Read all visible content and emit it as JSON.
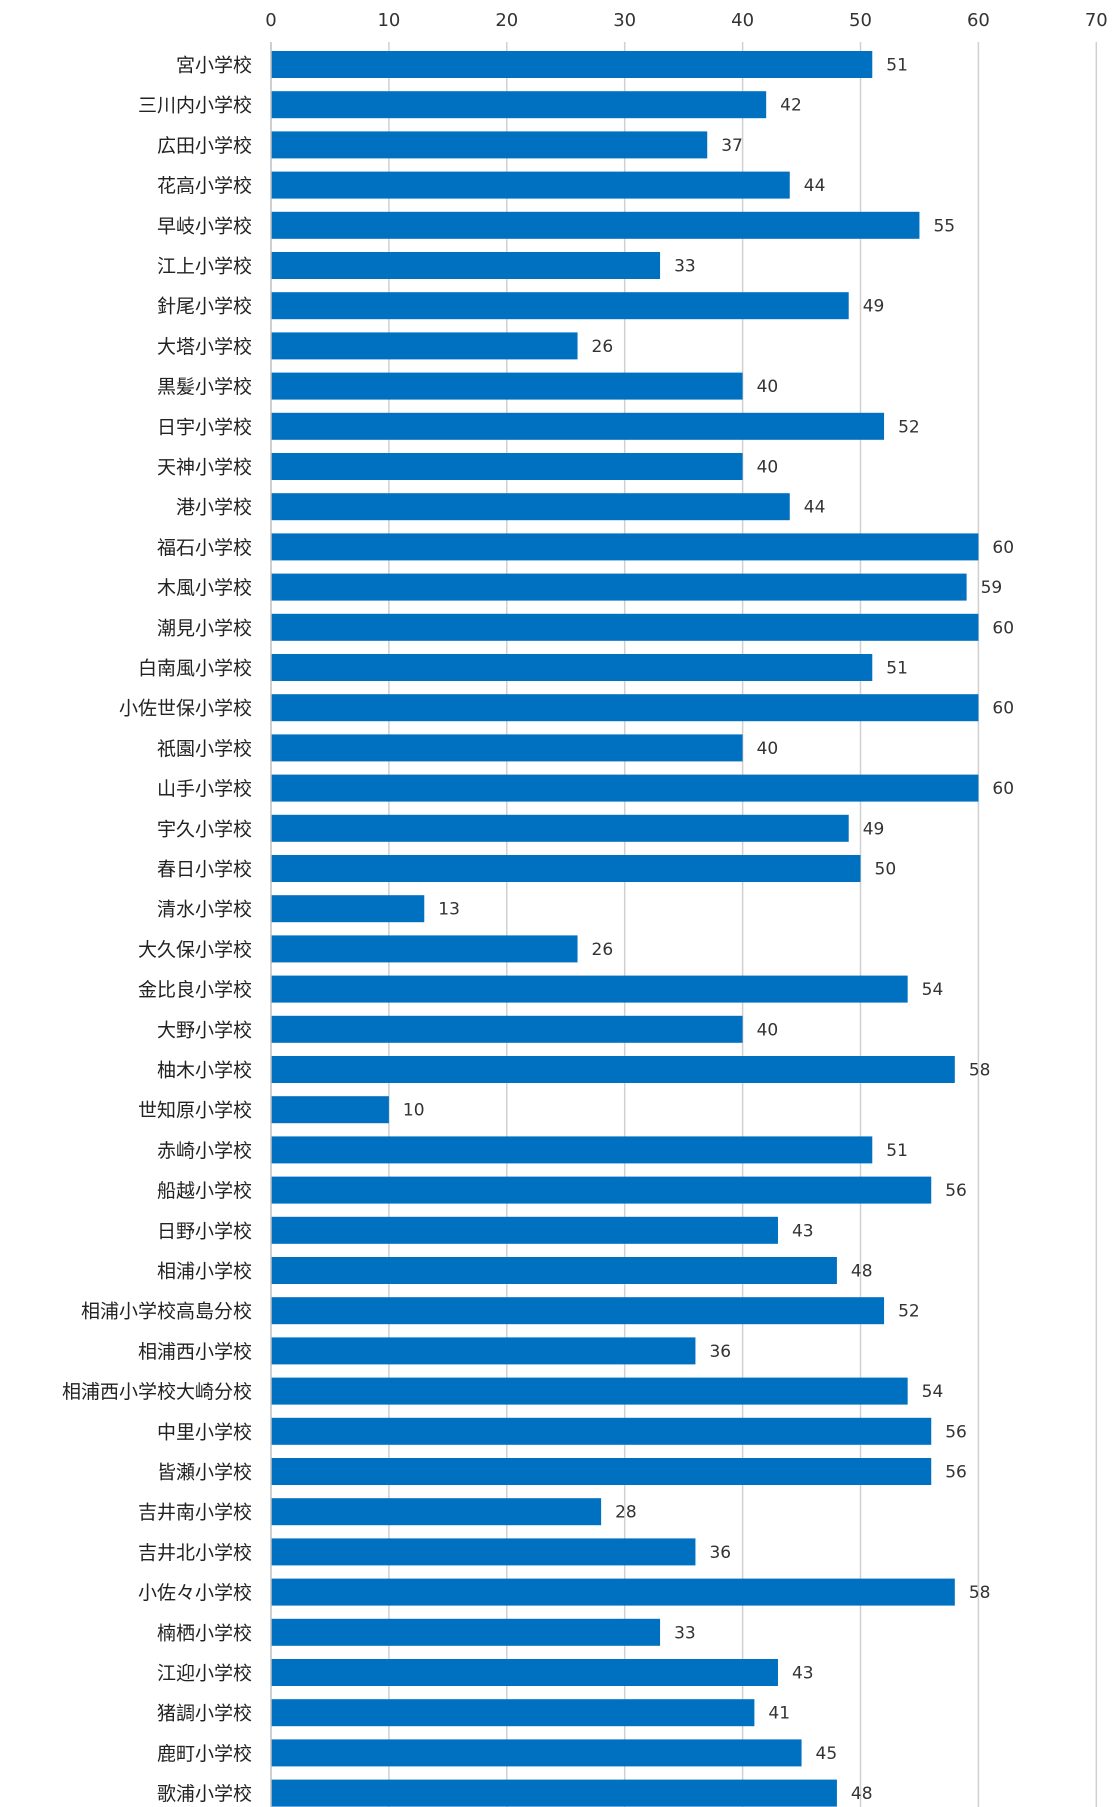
{
  "chart_data": {
    "type": "bar",
    "orientation": "horizontal",
    "title": "",
    "xlabel": "",
    "ylabel": "",
    "xlim": [
      0,
      70
    ],
    "x_ticks": [
      "0",
      "10",
      "20",
      "30",
      "40",
      "50",
      "60",
      "70"
    ],
    "x_tick_values": [
      0,
      10,
      20,
      30,
      40,
      50,
      60,
      70
    ],
    "x_axis_position": "top",
    "grid": true,
    "legend": "none",
    "bar_color": "#0070c0",
    "categories": [
      "宮小学校",
      "三川内小学校",
      "広田小学校",
      "花高小学校",
      "早岐小学校",
      "江上小学校",
      "針尾小学校",
      "大塔小学校",
      "黒髪小学校",
      "日宇小学校",
      "天神小学校",
      "港小学校",
      "福石小学校",
      "木風小学校",
      "潮見小学校",
      "白南風小学校",
      "小佐世保小学校",
      "祇園小学校",
      "山手小学校",
      "宇久小学校",
      "春日小学校",
      "清水小学校",
      "大久保小学校",
      "金比良小学校",
      "大野小学校",
      "柚木小学校",
      "世知原小学校",
      "赤崎小学校",
      "船越小学校",
      "日野小学校",
      "相浦小学校",
      "相浦小学校高島分校",
      "相浦西小学校",
      "相浦西小学校大崎分校",
      "中里小学校",
      "皆瀬小学校",
      "吉井南小学校",
      "吉井北小学校",
      "小佐々小学校",
      "楠栖小学校",
      "江迎小学校",
      "猪調小学校",
      "鹿町小学校",
      "歌浦小学校"
    ],
    "values": [
      51,
      42,
      37,
      44,
      55,
      33,
      49,
      26,
      40,
      52,
      40,
      44,
      60,
      59,
      60,
      51,
      60,
      40,
      60,
      49,
      50,
      13,
      26,
      54,
      40,
      58,
      10,
      51,
      56,
      43,
      48,
      52,
      36,
      54,
      56,
      56,
      28,
      36,
      58,
      33,
      43,
      41,
      45,
      48
    ],
    "data_labels": [
      "51",
      "42",
      "37",
      "44",
      "55",
      "33",
      "49",
      "26",
      "40",
      "52",
      "40",
      "44",
      "60",
      "59",
      "60",
      "51",
      "60",
      "40",
      "60",
      "49",
      "50",
      "13",
      "26",
      "54",
      "40",
      "58",
      "10",
      "51",
      "56",
      "43",
      "48",
      "52",
      "36",
      "54",
      "56",
      "56",
      "28",
      "36",
      "58",
      "33",
      "43",
      "41",
      "45",
      "48"
    ]
  }
}
